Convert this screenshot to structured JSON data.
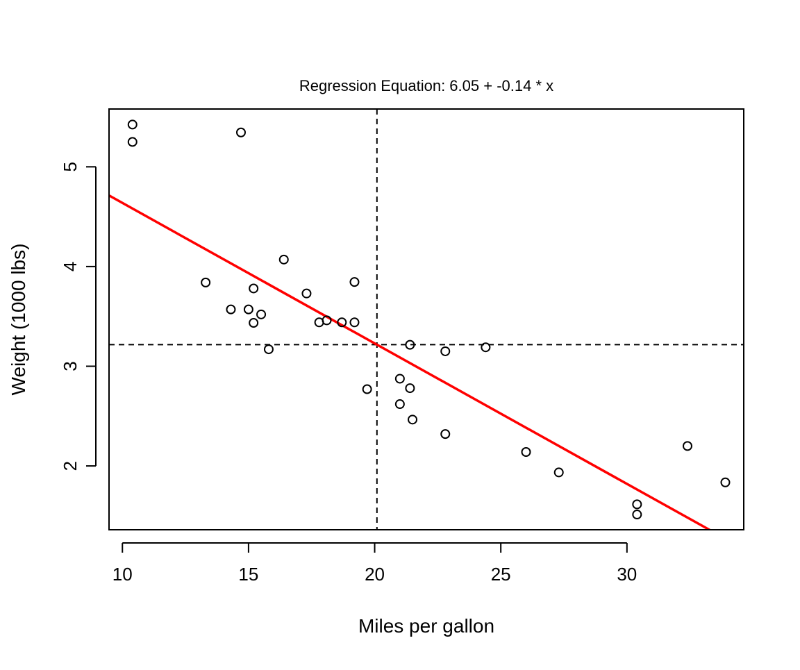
{
  "chart_data": {
    "type": "scatter",
    "title": "Regression Equation: 6.05 + -0.14 * x",
    "xlabel": "Miles per gallon",
    "ylabel": "Weight (1000 lbs)",
    "xlim": [
      9.47,
      34.63
    ],
    "ylim": [
      1.36,
      5.58
    ],
    "x_ticks": [
      10,
      15,
      20,
      25,
      30
    ],
    "y_ticks": [
      2,
      3,
      4,
      5
    ],
    "grid": false,
    "legend": "none",
    "points": [
      {
        "x": 21.0,
        "y": 2.62
      },
      {
        "x": 21.0,
        "y": 2.875
      },
      {
        "x": 22.8,
        "y": 2.32
      },
      {
        "x": 21.4,
        "y": 3.215
      },
      {
        "x": 18.7,
        "y": 3.44
      },
      {
        "x": 18.1,
        "y": 3.46
      },
      {
        "x": 14.3,
        "y": 3.57
      },
      {
        "x": 24.4,
        "y": 3.19
      },
      {
        "x": 22.8,
        "y": 3.15
      },
      {
        "x": 19.2,
        "y": 3.44
      },
      {
        "x": 17.8,
        "y": 3.44
      },
      {
        "x": 16.4,
        "y": 4.07
      },
      {
        "x": 17.3,
        "y": 3.73
      },
      {
        "x": 15.2,
        "y": 3.78
      },
      {
        "x": 10.4,
        "y": 5.25
      },
      {
        "x": 10.4,
        "y": 5.424
      },
      {
        "x": 14.7,
        "y": 5.345
      },
      {
        "x": 32.4,
        "y": 2.2
      },
      {
        "x": 30.4,
        "y": 1.615
      },
      {
        "x": 33.9,
        "y": 1.835
      },
      {
        "x": 21.5,
        "y": 2.465
      },
      {
        "x": 15.5,
        "y": 3.52
      },
      {
        "x": 15.2,
        "y": 3.435
      },
      {
        "x": 13.3,
        "y": 3.84
      },
      {
        "x": 19.2,
        "y": 3.845
      },
      {
        "x": 27.3,
        "y": 1.935
      },
      {
        "x": 26.0,
        "y": 2.14
      },
      {
        "x": 30.4,
        "y": 1.513
      },
      {
        "x": 15.8,
        "y": 3.17
      },
      {
        "x": 19.7,
        "y": 2.77
      },
      {
        "x": 15.0,
        "y": 3.57
      },
      {
        "x": 21.4,
        "y": 2.78
      }
    ],
    "regression": {
      "intercept": 6.047,
      "slope": -0.1409,
      "color": "#ff0000"
    },
    "mean_lines": {
      "x": 20.09,
      "y": 3.217
    }
  }
}
